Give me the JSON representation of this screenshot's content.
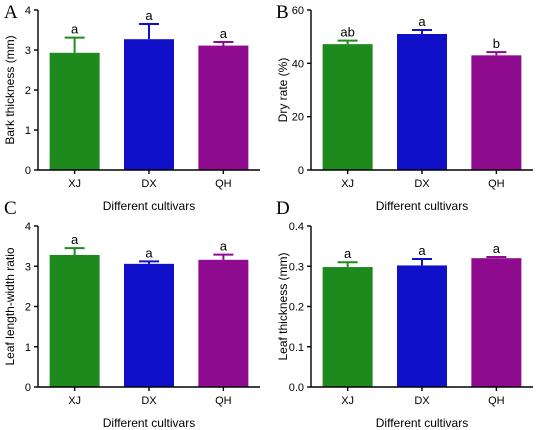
{
  "colors": {
    "XJ": "#1e8a1e",
    "DX": "#1010c8",
    "QH": "#8e0a8e"
  },
  "chart_data": [
    {
      "panel": "A",
      "type": "bar",
      "categories": [
        "XJ",
        "DX",
        "QH"
      ],
      "values": [
        2.93,
        3.27,
        3.11
      ],
      "errors": [
        0.38,
        0.38,
        0.09
      ],
      "sig_letters": [
        "a",
        "a",
        "a"
      ],
      "xlabel": "Different cultivars",
      "ylabel": "Bark thickness (mm)",
      "ylim": [
        0,
        4
      ],
      "yticks": [
        0,
        1,
        2,
        3,
        4
      ],
      "ytick_labels": [
        "0",
        "1",
        "2",
        "3",
        "4"
      ]
    },
    {
      "panel": "B",
      "type": "bar",
      "categories": [
        "XJ",
        "DX",
        "QH"
      ],
      "values": [
        47.2,
        51.0,
        43.0
      ],
      "errors": [
        1.3,
        1.5,
        1.2
      ],
      "sig_letters": [
        "ab",
        "a",
        "b"
      ],
      "xlabel": "Different cultivars",
      "ylabel": "Dry rate (%)",
      "ylim": [
        0,
        60
      ],
      "yticks": [
        0,
        20,
        40,
        60
      ],
      "ytick_labels": [
        "0",
        "20",
        "40",
        "60"
      ]
    },
    {
      "panel": "C",
      "type": "bar",
      "categories": [
        "XJ",
        "DX",
        "QH"
      ],
      "values": [
        3.28,
        3.06,
        3.16
      ],
      "errors": [
        0.17,
        0.06,
        0.13
      ],
      "sig_letters": [
        "a",
        "a",
        "a"
      ],
      "xlabel": "Different cultivars",
      "ylabel": "Leaf length-width ratio",
      "ylim": [
        0,
        4
      ],
      "yticks": [
        0,
        1,
        2,
        3,
        4
      ],
      "ytick_labels": [
        "0",
        "1",
        "2",
        "3",
        "4"
      ]
    },
    {
      "panel": "D",
      "type": "bar",
      "categories": [
        "XJ",
        "DX",
        "QH"
      ],
      "values": [
        0.298,
        0.302,
        0.32
      ],
      "errors": [
        0.012,
        0.016,
        0.003
      ],
      "sig_letters": [
        "a",
        "a",
        "a"
      ],
      "xlabel": "Different cultivars",
      "ylabel": "Leaf thickness (mm)",
      "ylim": [
        0,
        0.4
      ],
      "yticks": [
        0,
        0.1,
        0.2,
        0.3,
        0.4
      ],
      "ytick_labels": [
        "0.0",
        "0.1",
        "0.2",
        "0.3",
        "0.4"
      ]
    }
  ]
}
